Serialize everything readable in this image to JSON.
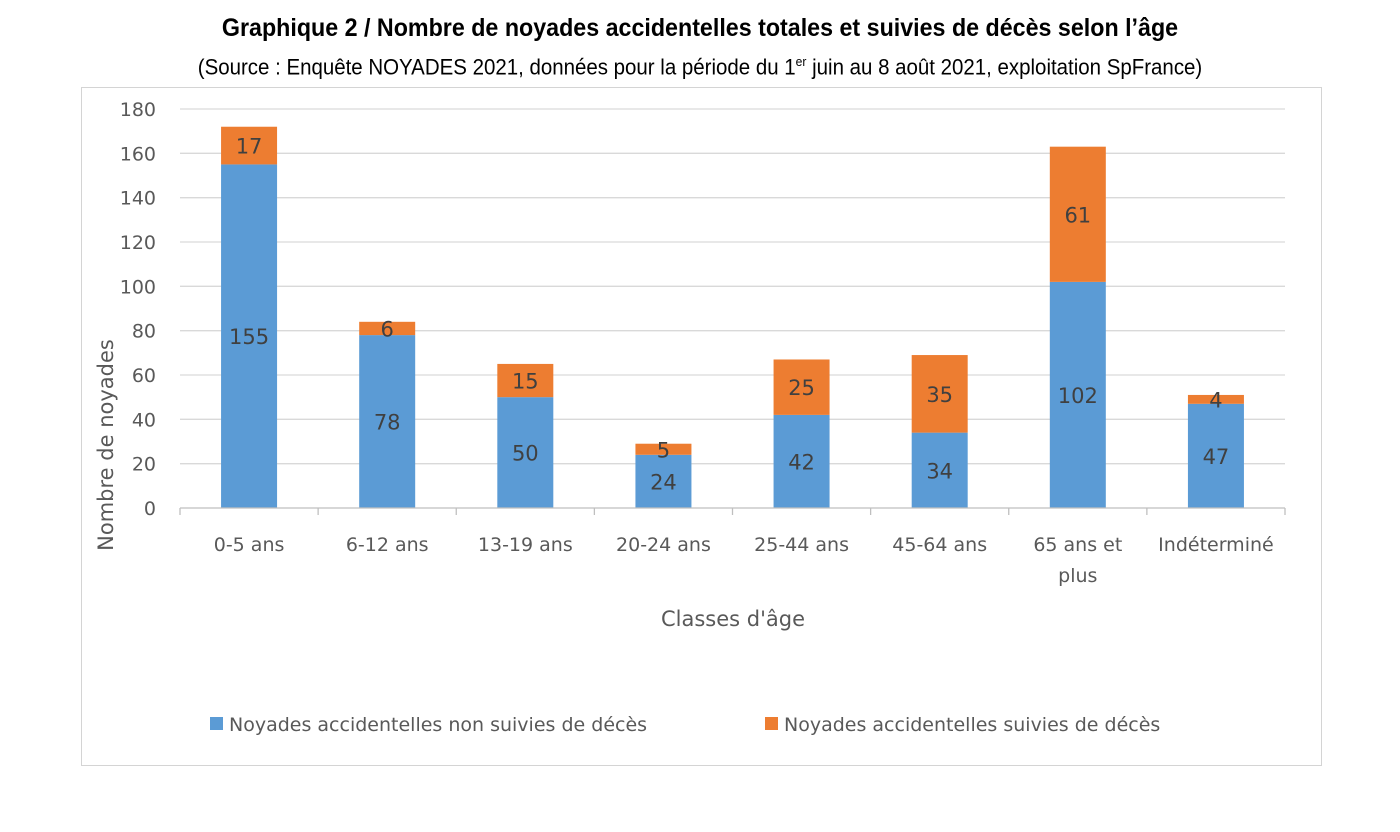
{
  "title": "Graphique 2 / Nombre de noyades accidentelles totales et suivies de décès selon l’âge",
  "subtitle_pre": "(Source : Enquête NOYADES 2021, données pour la période du 1",
  "subtitle_sup": "er",
  "subtitle_post": " juin au 8 août 2021, exploitation SpFrance)",
  "chart_data": {
    "type": "bar",
    "stacked": true,
    "categories": [
      "0-5 ans",
      "6-12 ans",
      "13-19 ans",
      "20-24 ans",
      "25-44 ans",
      "45-64 ans",
      "65 ans et plus",
      "Indéterminé"
    ],
    "series": [
      {
        "name": "Noyades accidentelles non suivies de décès",
        "color": "#5b9bd5",
        "values": [
          155,
          78,
          50,
          24,
          42,
          34,
          102,
          47
        ]
      },
      {
        "name": "Noyades accidentelles suivies de décès",
        "color": "#ed7d31",
        "values": [
          17,
          6,
          15,
          5,
          25,
          35,
          61,
          4
        ]
      }
    ],
    "xlabel": "Classes d'âge",
    "ylabel": "Nombre de noyades",
    "ylim": [
      0,
      180
    ],
    "yticks": [
      0,
      20,
      40,
      60,
      80,
      100,
      120,
      140,
      160,
      180
    ],
    "grid": true,
    "legend": "bottom"
  }
}
